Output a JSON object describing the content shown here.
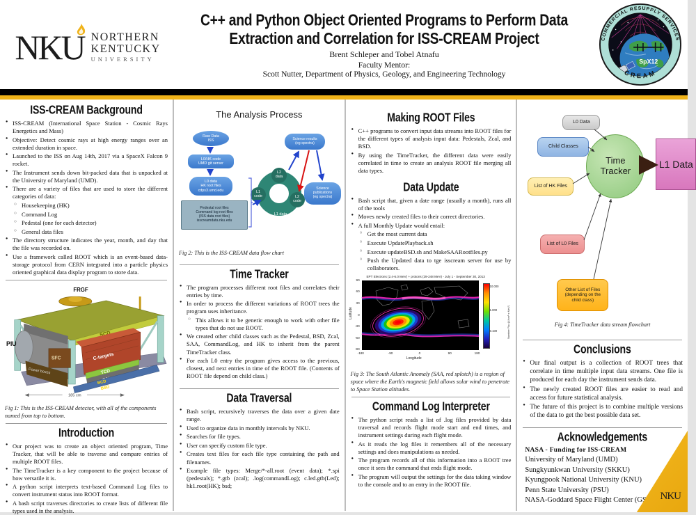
{
  "colors": {
    "gold": "#F0B319",
    "black": "#000000"
  },
  "header": {
    "logo": {
      "acronym": "NKU",
      "line1": "NORTHERN",
      "line2": "KENTUCKY",
      "line3": "UNIVERSITY"
    },
    "title_line1": "C++ and Python Object Oriented Programs to Perform Data",
    "title_line2": "Extraction and Correlation for ISS-CREAM Project",
    "authors": "Brent Schleper and Tobel Atnafu",
    "mentor_label": "Faculty Mentor:",
    "mentor": "Scott Nutter, Department of Physics, Geology, and Engineering Technology",
    "patch": {
      "top_text": "COMMERCIAL RESUPPLY SERVICES",
      "center_text": "SpX12",
      "bottom_text": "CREAM"
    }
  },
  "sections": {
    "background": {
      "title": "ISS-CREAM Background",
      "bullets": [
        {
          "level": 0,
          "text": "ISS-CREAM (International Space Station - Cosmic Rays Energetics and Mass)"
        },
        {
          "level": 0,
          "text": "Objective: Detect cosmic rays at high energy ranges over an extended duration in space."
        },
        {
          "level": 0,
          "text": "Launched to the ISS on Aug 14th, 2017 via a SpaceX Falcon 9 rocket."
        },
        {
          "level": 0,
          "text": "The Instrument sends down bit-packed data that is unpacked at the University of Maryland (UMD)."
        },
        {
          "level": 0,
          "text": "There are a variety of files that are used to store the different categories of data:"
        },
        {
          "level": 1,
          "text": "Housekeeping (HK)"
        },
        {
          "level": 1,
          "text": "Command Log"
        },
        {
          "level": 1,
          "text": "Pedestal (one for each detector)"
        },
        {
          "level": 1,
          "text": "General data files"
        },
        {
          "level": 0,
          "text": "The directory structure indicates the year, month, and day that the file was recorded on."
        },
        {
          "level": 0,
          "text": "Use a framework called ROOT which is an event-based data-storage protocol from CERN integrated into a particle physics oriented graphical data display program to store data."
        }
      ]
    },
    "introduction": {
      "title": "Introduction",
      "bullets": [
        {
          "level": 0,
          "text": "Our project was to create an object oriented program, Time Tracker, that will be able to traverse and compare entries of multiple ROOT files."
        },
        {
          "level": 0,
          "text": "The TimeTracker is a key component to the project because of how versatile it is."
        },
        {
          "level": 0,
          "text": "A python script interprets text-based Command Log files to convert instrument status into ROOT format."
        },
        {
          "level": 0,
          "text": "A bash script traverses directories to create lists of different file types used in the analysis."
        }
      ]
    },
    "time_tracker": {
      "title": "Time Tracker",
      "bullets": [
        {
          "level": 0,
          "text": "The program processes different root files and correlates their entries by time."
        },
        {
          "level": 0,
          "text": "In order to process the different variations of ROOT trees the program uses inheritance."
        },
        {
          "level": 1,
          "text": "This allows it to be generic enough to work with other file types that do not use ROOT."
        },
        {
          "level": 0,
          "text": "We created other child classes such as the Pedestal, BSD, Zcal, SAA, CommandLog, and HK to inherit from the parent TimeTracker class."
        },
        {
          "level": 0,
          "text": "For each L0 entry the program gives access to the previous, closest, and next entries in time of the ROOT file. (Contents of ROOT file depend on child class.)"
        }
      ]
    },
    "data_traversal": {
      "title": "Data Traversal",
      "bullets": [
        {
          "level": 0,
          "text": "Bash script, recursively traverses the data over a given date range."
        },
        {
          "level": 0,
          "text": "Used to organize data in monthly intervals by NKU."
        },
        {
          "level": 0,
          "text": "Searches for file types."
        },
        {
          "level": 0,
          "text": "User can specify custom file type."
        },
        {
          "level": 0,
          "text": "Creates text files for each file type containing the path and filenames."
        },
        {
          "level": 0,
          "text": "Example file types: Merge/*-all.root (event data); *.spi (pedestals); *.gtb (zcal); .log(commandLog); c.led.gtb(Led); hk1.root(HK); bsd;"
        }
      ]
    },
    "making_root": {
      "title": "Making ROOT Files",
      "bullets": [
        {
          "level": 0,
          "text": "C++ programs to convert input data streams into ROOT files for the different types of analysis input data: Pedestals, Zcal, and BSD."
        },
        {
          "level": 0,
          "text": "By using the TimeTracker, the different data were easily correlated in time to create an analysis ROOT file merging all data types."
        }
      ]
    },
    "data_update": {
      "title": "Data Update",
      "bullets": [
        {
          "level": 0,
          "text": "Bash script that, given a date range (usually a month), runs all of the tools"
        },
        {
          "level": 0,
          "text": "Moves newly created files to their correct directories."
        },
        {
          "level": 0,
          "text": "A full Monthly Update would entail:"
        },
        {
          "level": 1,
          "text": "Get the most current data"
        },
        {
          "level": 1,
          "text": "Execute UpdatePlayback.sh"
        },
        {
          "level": 1,
          "text": "Execute updateBSD.sh and MakeSAARootfiles.py"
        },
        {
          "level": 1,
          "text": "Push the Updated data to tge isscream server for use by collaborators."
        }
      ]
    },
    "command_log": {
      "title": "Command Log Interpreter",
      "bullets": [
        {
          "level": 0,
          "text": "The python script reads a list of .log files provided by data traversal and records flight mode start and end times, and instrument settings during each flight mode."
        },
        {
          "level": 0,
          "text": "As it reads the log files it remembers all of the necessary settings and does manipulations as needed."
        },
        {
          "level": 0,
          "text": "The program records all of this information into a ROOT tree once it sees the command that ends flight mode."
        },
        {
          "level": 0,
          "text": "The program will output the settings for the data taking window to the console and to an entry in the ROOT file."
        }
      ]
    },
    "conclusions": {
      "title": "Conclusions",
      "bullets": [
        {
          "level": 0,
          "text": "Our final output is a collection of ROOT trees that correlate in time multiple input data streams. One file is produced for each day the instrument sends data."
        },
        {
          "level": 0,
          "text": "The newly created ROOT files are easier to read and access for future statistical analysis."
        },
        {
          "level": 0,
          "text": "The future of this project is to combine multiple versions of the data to get the best possible data set."
        }
      ]
    },
    "acknowledgements": {
      "title": "Acknowledgements",
      "lines": [
        "NASA - Funding for ISS-CREAM",
        "University of Maryland (UMD)",
        "Sungkyunkwan University (SKKU)",
        "Kyungpook National University (KNU)",
        "Penn State University (PSU)",
        "NASA-Goddard Space Flight Center (GSFC)"
      ]
    }
  },
  "figures": {
    "fig1": {
      "labels": {
        "frgf": "FRGF",
        "piu": "PIU",
        "scd": "SCD",
        "ctargets": "C-targets",
        "tcd": "TCD",
        "cal": "CAL",
        "sfc": "SFC",
        "power": "Power boxes",
        "bcd": "BCD",
        "bsd": "BSD",
        "dim": "185 cm"
      },
      "caption": "Fig 1: This is the ISS-CREAM detector, with all of the components named from top to bottom."
    },
    "fig2": {
      "title": "The Analysis Process",
      "nodes": {
        "raw": "Raw Data\nISS",
        "l0hk": "L0/HK code\nUMD git server",
        "l0data": "L0 data\nHK root files\ncdps3.umd.edu",
        "pedestal": "Pedestal root files\nCommand log root files\n(ISS data root files)\nisscreamdata.nku.edu",
        "l2data": "L2\ndata",
        "l1code": "L1\ncode",
        "l2code": "L2\ncode",
        "l1data": "L1 data",
        "sci_results": "Science results\n(eg spectra)",
        "sci_pubs": "Science\npublications\n(eg spectra)"
      },
      "caption": "Fig 2: This is the ISS-CREAM data flow chart"
    },
    "fig3": {
      "plot_title": "EPT Electrons (2.4-6.0 MeV) + protons (29-248 MeV) - July 1 - September 30, 2013",
      "ylabel": "Latitude",
      "xlabel": "Longitude",
      "yticks": [
        "90",
        "60",
        "30",
        "0",
        "-30",
        "-60",
        "-90"
      ],
      "xticks": [
        "-180",
        "-90",
        "0",
        "90",
        "180"
      ],
      "colorbar_ticks": [
        "10.000",
        "1.000",
        "0.100"
      ],
      "colorbar_label": "Number Flux [#/cm²·s·MeV]",
      "caption": "Fig 3: The South Atlantic Anomaly (SAA, red splotch) is a region of space where the Earth's magnetic field allows solar wind to penetrate to Space Station altitudes."
    },
    "fig4": {
      "nodes": {
        "l0data": "L0 Data",
        "child_classes": "Child Classes",
        "hk_files": "List of HK Files",
        "l0_files": "List of L0 Files",
        "other_files": "Other List of Files\n(depending on the\nchild class)",
        "tracker": "Time\nTracker",
        "l1data": "L1 Data"
      },
      "caption": "Fig 4: TimeTracker data stream flowchart"
    }
  },
  "footer": {
    "ribbon_logo": "NKU"
  }
}
